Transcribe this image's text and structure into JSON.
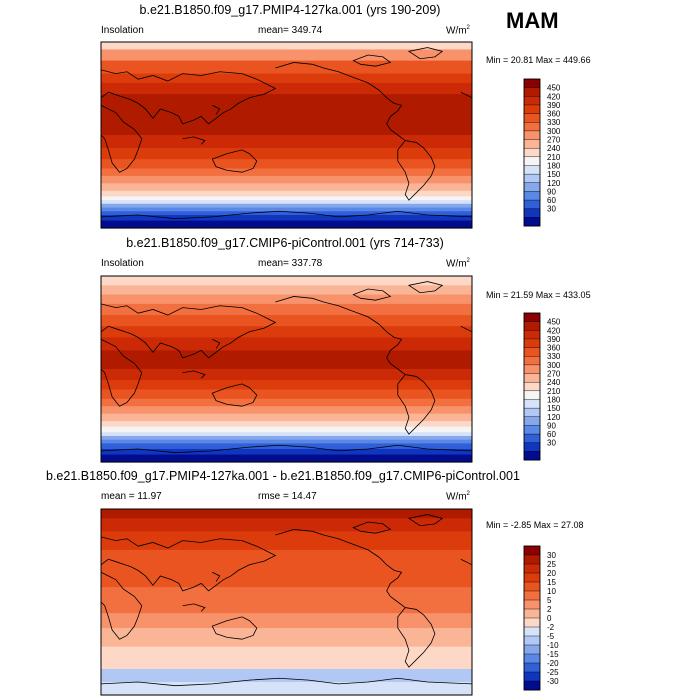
{
  "season": "MAM",
  "panels": [
    {
      "title": "b.e21.B1850.f09_g17.PMIP4-127ka.001 (yrs 190-209)",
      "left_label": "Insolation",
      "center_label": "mean= 349.74",
      "units": "W/m",
      "units_sup": "2",
      "minmax": "Min =  20.81 Max = 449.66",
      "colorbar_labels": [
        "450",
        "420",
        "390",
        "360",
        "330",
        "300",
        "270",
        "240",
        "210",
        "180",
        "150",
        "120",
        "90",
        "60",
        "30"
      ],
      "colorbar_colors": [
        "#8b0000",
        "#b01b00",
        "#cc2a06",
        "#dc3c0c",
        "#e95420",
        "#f27040",
        "#f7926a",
        "#fab597",
        "#fdd8c6",
        "#f5f5f5",
        "#d5e2f8",
        "#b0c8f3",
        "#85a8ec",
        "#5b88e6",
        "#2f60d8",
        "#1036c0",
        "#020c8e"
      ],
      "bands": [
        {
          "frac": 0.04,
          "color": "#fdd8c6"
        },
        {
          "frac": 0.06,
          "color": "#f7926a"
        },
        {
          "frac": 0.07,
          "color": "#e95420"
        },
        {
          "frac": 0.05,
          "color": "#dc3c0c"
        },
        {
          "frac": 0.06,
          "color": "#cc2a06"
        },
        {
          "frac": 0.12,
          "color": "#b01b00"
        },
        {
          "frac": 0.1,
          "color": "#b01b00"
        },
        {
          "frac": 0.07,
          "color": "#cc2a06"
        },
        {
          "frac": 0.06,
          "color": "#dc3c0c"
        },
        {
          "frac": 0.05,
          "color": "#e95420"
        },
        {
          "frac": 0.04,
          "color": "#f27040"
        },
        {
          "frac": 0.04,
          "color": "#f7926a"
        },
        {
          "frac": 0.04,
          "color": "#fab597"
        },
        {
          "frac": 0.03,
          "color": "#fdd8c6"
        },
        {
          "frac": 0.02,
          "color": "#f5f5f5"
        },
        {
          "frac": 0.02,
          "color": "#d5e2f8"
        },
        {
          "frac": 0.02,
          "color": "#85a8ec"
        },
        {
          "frac": 0.02,
          "color": "#5b88e6"
        },
        {
          "frac": 0.02,
          "color": "#2f60d8"
        },
        {
          "frac": 0.03,
          "color": "#1036c0"
        },
        {
          "frac": 0.04,
          "color": "#020c8e"
        }
      ]
    },
    {
      "title": "b.e21.B1850.f09_g17.CMIP6-piControl.001 (yrs 714-733)",
      "left_label": "Insolation",
      "center_label": "mean= 337.78",
      "units": "W/m",
      "units_sup": "2",
      "minmax": "Min =  21.59 Max = 433.05",
      "colorbar_labels": [
        "450",
        "420",
        "390",
        "360",
        "330",
        "300",
        "270",
        "240",
        "210",
        "180",
        "150",
        "120",
        "90",
        "60",
        "30"
      ],
      "colorbar_colors": [
        "#8b0000",
        "#b01b00",
        "#cc2a06",
        "#dc3c0c",
        "#e95420",
        "#f27040",
        "#f7926a",
        "#fab597",
        "#fdd8c6",
        "#f5f5f5",
        "#d5e2f8",
        "#b0c8f3",
        "#85a8ec",
        "#5b88e6",
        "#2f60d8",
        "#1036c0",
        "#020c8e"
      ],
      "bands": [
        {
          "frac": 0.05,
          "color": "#fdd8c6"
        },
        {
          "frac": 0.05,
          "color": "#fab597"
        },
        {
          "frac": 0.05,
          "color": "#f7926a"
        },
        {
          "frac": 0.06,
          "color": "#f27040"
        },
        {
          "frac": 0.06,
          "color": "#e95420"
        },
        {
          "frac": 0.06,
          "color": "#dc3c0c"
        },
        {
          "frac": 0.07,
          "color": "#cc2a06"
        },
        {
          "frac": 0.1,
          "color": "#b01b00"
        },
        {
          "frac": 0.06,
          "color": "#cc2a06"
        },
        {
          "frac": 0.05,
          "color": "#dc3c0c"
        },
        {
          "frac": 0.05,
          "color": "#e95420"
        },
        {
          "frac": 0.04,
          "color": "#f27040"
        },
        {
          "frac": 0.04,
          "color": "#f7926a"
        },
        {
          "frac": 0.04,
          "color": "#fab597"
        },
        {
          "frac": 0.03,
          "color": "#fdd8c6"
        },
        {
          "frac": 0.03,
          "color": "#f5f5f5"
        },
        {
          "frac": 0.02,
          "color": "#d5e2f8"
        },
        {
          "frac": 0.02,
          "color": "#85a8ec"
        },
        {
          "frac": 0.02,
          "color": "#5b88e6"
        },
        {
          "frac": 0.03,
          "color": "#2f60d8"
        },
        {
          "frac": 0.03,
          "color": "#1036c0"
        },
        {
          "frac": 0.04,
          "color": "#020c8e"
        }
      ]
    },
    {
      "title": "b.e21.B1850.f09_g17.PMIP4-127ka.001 - b.e21.B1850.f09_g17.CMIP6-piControl.001",
      "left_label": "mean =  11.97",
      "center_label": "rmse =  14.47",
      "units": "W/m",
      "units_sup": "2",
      "minmax": "Min =  -2.85 Max =  27.08",
      "colorbar_labels": [
        "30",
        "25",
        "20",
        "15",
        "10",
        "5",
        "2",
        "0",
        "-2",
        "-5",
        "-10",
        "-15",
        "-20",
        "-25",
        "-30"
      ],
      "colorbar_colors": [
        "#8b0000",
        "#b01b00",
        "#cc2a06",
        "#dc3c0c",
        "#e95420",
        "#f27040",
        "#f7926a",
        "#fab597",
        "#fdd8c6",
        "#d5e2f8",
        "#b0c8f3",
        "#85a8ec",
        "#5b88e6",
        "#2f60d8",
        "#1036c0",
        "#020c8e"
      ],
      "bands": [
        {
          "frac": 0.05,
          "color": "#b01b00"
        },
        {
          "frac": 0.07,
          "color": "#cc2a06"
        },
        {
          "frac": 0.1,
          "color": "#dc3c0c"
        },
        {
          "frac": 0.2,
          "color": "#e95420"
        },
        {
          "frac": 0.14,
          "color": "#f27040"
        },
        {
          "frac": 0.08,
          "color": "#f7926a"
        },
        {
          "frac": 0.1,
          "color": "#fab597"
        },
        {
          "frac": 0.12,
          "color": "#fdd8c6"
        },
        {
          "frac": 0.07,
          "color": "#b0c8f3"
        },
        {
          "frac": 0.07,
          "color": "#d5e2f8"
        }
      ]
    }
  ]
}
